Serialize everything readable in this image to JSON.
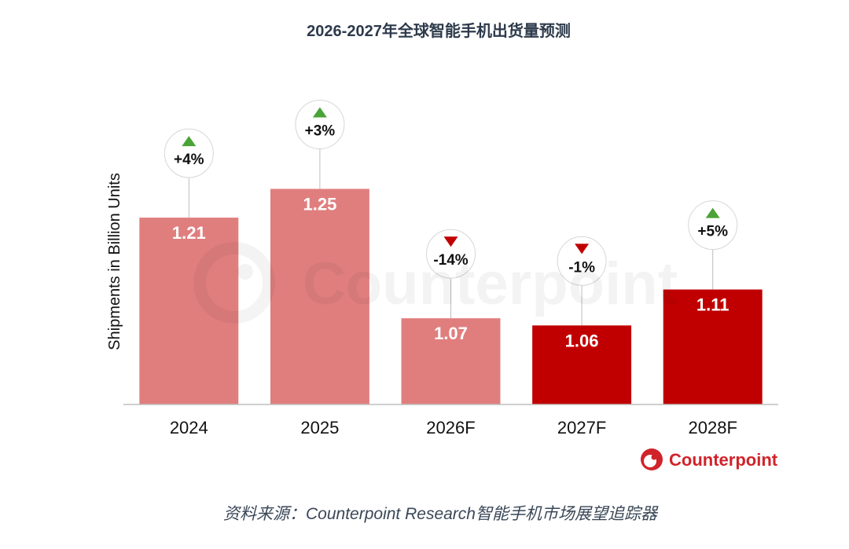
{
  "chart_data": {
    "type": "bar",
    "title": "2026-2027年全球智能手机出货量预测",
    "ylabel": "Shipments in Billion Units",
    "categories": [
      "2024",
      "2025",
      "2026F",
      "2027F",
      "2028F"
    ],
    "values": [
      1.21,
      1.25,
      1.07,
      1.06,
      1.11
    ],
    "changes": [
      "+4%",
      "+3%",
      "-14%",
      "-1%",
      "+5%"
    ],
    "ylim": [
      0.95,
      1.35
    ],
    "grid": false,
    "bar_colors": [
      "#E07E7E",
      "#E07E7E",
      "#E07E7E",
      "#C00000",
      "#C00000"
    ],
    "colors": {
      "up": "#4AA336",
      "down": "#C00000"
    }
  },
  "watermark": "Counterpoint",
  "logo": {
    "text": "Counterpoint",
    "color": "#D1232A"
  },
  "source": "资料来源：Counterpoint Research智能手机市场展望追踪器"
}
